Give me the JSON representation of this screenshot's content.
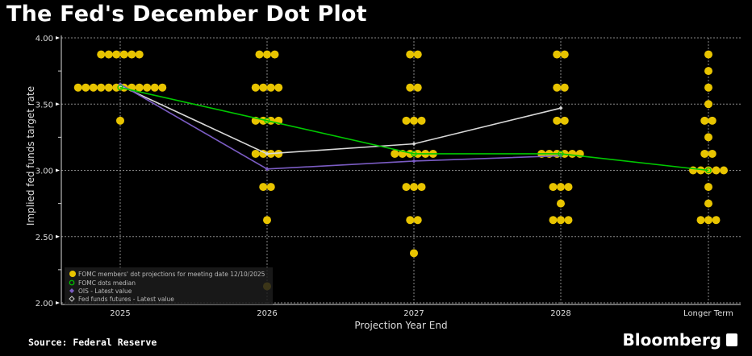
{
  "title": "The Fed's December Dot Plot",
  "source": "Source: Federal Reserve",
  "brand": "Bloomberg",
  "chart_data": {
    "type": "scatter",
    "title": "The Fed's December Dot Plot",
    "xlabel": "Projection Year End",
    "ylabel": "Implied fed funds target rate",
    "categories": [
      "2025",
      "2026",
      "2027",
      "2028",
      "Longer Term"
    ],
    "ylim": [
      2.0,
      4.0
    ],
    "yticks": [
      "2.00",
      "2.50",
      "3.00",
      "3.50",
      "4.00"
    ],
    "grid": true,
    "legend_position": "bottom-left",
    "dots": [
      {
        "category": "2025",
        "counts": {
          "3.875": 6,
          "3.625": 12,
          "3.375": 1
        }
      },
      {
        "category": "2026",
        "counts": {
          "3.875": 3,
          "3.625": 4,
          "3.375": 4,
          "3.125": 4,
          "2.875": 2,
          "2.625": 1,
          "2.125": 1
        }
      },
      {
        "category": "2027",
        "counts": {
          "3.875": 2,
          "3.625": 2,
          "3.375": 3,
          "3.125": 6,
          "2.875": 3,
          "2.625": 2,
          "2.375": 1
        }
      },
      {
        "category": "2028",
        "counts": {
          "3.875": 2,
          "3.625": 2,
          "3.375": 2,
          "3.125": 6,
          "2.875": 3,
          "2.75": 1,
          "2.625": 3
        }
      },
      {
        "category": "Longer Term",
        "counts": {
          "3.875": 1,
          "3.75": 1,
          "3.625": 1,
          "3.5": 1,
          "3.375": 2,
          "3.25": 1,
          "3.125": 2,
          "3.0": 5,
          "2.875": 1,
          "2.75": 1,
          "2.625": 3
        }
      }
    ],
    "series": [
      {
        "name": "FOMC dots median",
        "color": "#00c800",
        "values": [
          3.625,
          3.375,
          3.125,
          3.125,
          3.0
        ]
      },
      {
        "name": "OIS - Latest value",
        "color": "#7b5cc4",
        "values": [
          3.65,
          3.01,
          3.07,
          3.11,
          null
        ]
      },
      {
        "name": "Fed funds futures - Latest value",
        "color": "#d8d8d8",
        "values": [
          3.64,
          3.125,
          3.2,
          3.47,
          null
        ]
      }
    ],
    "legend": [
      "FOMC members' dot projections for meeting date 12/10/2025",
      "FOMC dots median",
      "OIS - Latest value",
      "Fed funds futures - Latest value"
    ],
    "dot_color": "#e8c400"
  }
}
